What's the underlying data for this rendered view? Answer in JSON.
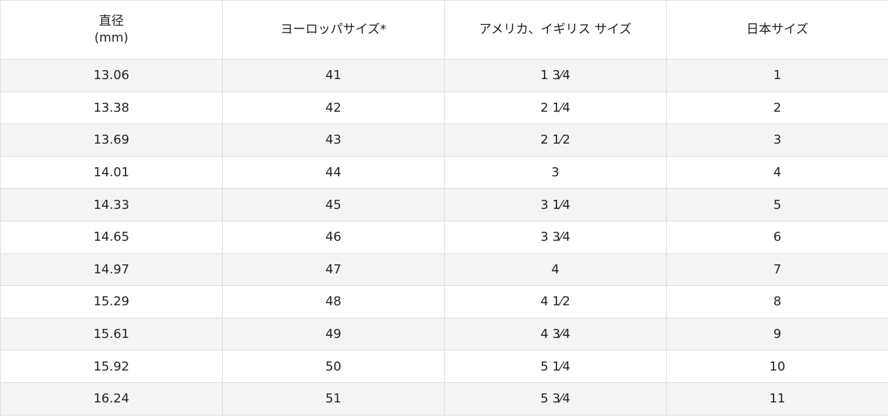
{
  "table": {
    "header": [
      "直径\n(mm)",
      "ヨーロッパサイズ*",
      "アメリカ、イギリス サイズ",
      "日本サイズ"
    ],
    "rows": [
      [
        "13.06",
        "41",
        "1 3⁄4",
        "1"
      ],
      [
        "13.38",
        "42",
        "2 1⁄4",
        "2"
      ],
      [
        "13.69",
        "43",
        "2 1⁄2",
        "3"
      ],
      [
        "14.01",
        "44",
        "3",
        "4"
      ],
      [
        "14.33",
        "45",
        "3 1⁄4",
        "5"
      ],
      [
        "14.65",
        "46",
        "3 3⁄4",
        "6"
      ],
      [
        "14.97",
        "47",
        "4",
        "7"
      ],
      [
        "15.29",
        "48",
        "4 1⁄2",
        "8"
      ],
      [
        "15.61",
        "49",
        "4 3⁄4",
        "9"
      ],
      [
        "15.92",
        "50",
        "5 1⁄4",
        "10"
      ],
      [
        "16.24",
        "51",
        "5 3⁄4",
        "11"
      ]
    ]
  }
}
